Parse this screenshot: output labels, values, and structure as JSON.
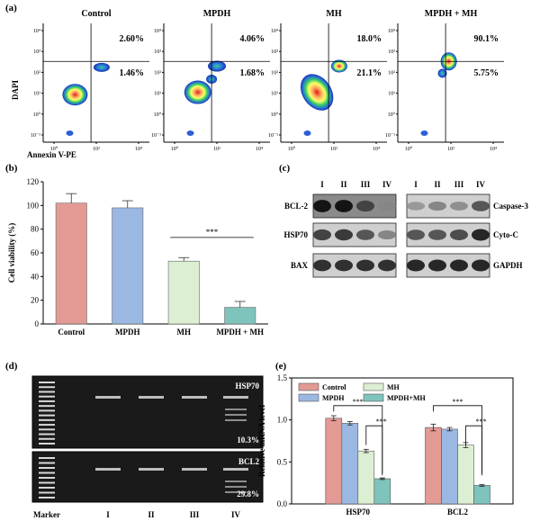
{
  "panel_a": {
    "label": "(a)",
    "ylabel": "DAPI",
    "xlabel": "Annexin V-PE",
    "plots": [
      {
        "title": "Control",
        "q_upper": "2.60%",
        "q_lower": "1.46%"
      },
      {
        "title": "MPDH",
        "q_upper": "4.06%",
        "q_lower": "1.68%"
      },
      {
        "title": "MH",
        "q_upper": "18.0%",
        "q_lower": "21.1%"
      },
      {
        "title": "MPDH + MH",
        "q_upper": "90.1%",
        "q_lower": "5.75%"
      }
    ],
    "y_ticks": [
      "10⁻¹",
      "10⁰",
      "10¹",
      "10²",
      "10³",
      "10⁴"
    ],
    "x_ticks": [
      "10⁰",
      "10²",
      "10⁴"
    ]
  },
  "panel_b": {
    "label": "(b)",
    "significance": "***",
    "chart_data": {
      "type": "bar",
      "categories": [
        "Control",
        "MPDH",
        "MH",
        "MPDH + MH"
      ],
      "values": [
        102,
        98,
        53,
        14
      ],
      "errors": [
        8,
        6,
        3,
        5
      ],
      "colors": [
        "#e39a94",
        "#9bb8e3",
        "#ddefd2",
        "#7ec4bd"
      ],
      "xlabel": "",
      "ylabel": "Cell viability (%)",
      "ylim": [
        0,
        120
      ],
      "yticks": [
        0,
        20,
        40,
        60,
        80,
        100,
        120
      ]
    }
  },
  "panel_c": {
    "label": "(c)",
    "lanes": [
      "I",
      "II",
      "III",
      "IV"
    ],
    "left_rows": [
      "BCL-2",
      "HSP70",
      "BAX"
    ],
    "right_rows": [
      "Caspase-3",
      "Cyto-C",
      "GAPDH"
    ]
  },
  "panel_d": {
    "label": "(d)",
    "gel_top_label": "HSP70",
    "gel_top_pct": "10.3%",
    "gel_bottom_label": "BCL2",
    "gel_bottom_pct": "29.8%",
    "lanes": [
      "Marker",
      "I",
      "II",
      "III",
      "IV"
    ]
  },
  "panel_e": {
    "label": "(e)",
    "significance": [
      "***",
      "***",
      "***",
      "***"
    ],
    "chart_data": {
      "type": "bar",
      "categories": [
        "HSP70",
        "BCL2"
      ],
      "series": [
        {
          "name": "Control",
          "values": [
            1.02,
            0.91
          ],
          "errors": [
            0.03,
            0.04
          ],
          "color": "#e39a94"
        },
        {
          "name": "MPDH",
          "values": [
            0.96,
            0.89
          ],
          "errors": [
            0.02,
            0.02
          ],
          "color": "#9bb8e3"
        },
        {
          "name": "MH",
          "values": [
            0.63,
            0.7
          ],
          "errors": [
            0.02,
            0.03
          ],
          "color": "#ddefd2"
        },
        {
          "name": "MPDH+MH",
          "values": [
            0.3,
            0.22
          ],
          "errors": [
            0.01,
            0.01
          ],
          "color": "#7ec4bd"
        }
      ],
      "xlabel": "",
      "ylabel": "Relative mRNA level",
      "ylim": [
        0,
        1.5
      ],
      "yticks": [
        "0.0",
        "0.5",
        "1.0",
        "1.5"
      ]
    }
  }
}
